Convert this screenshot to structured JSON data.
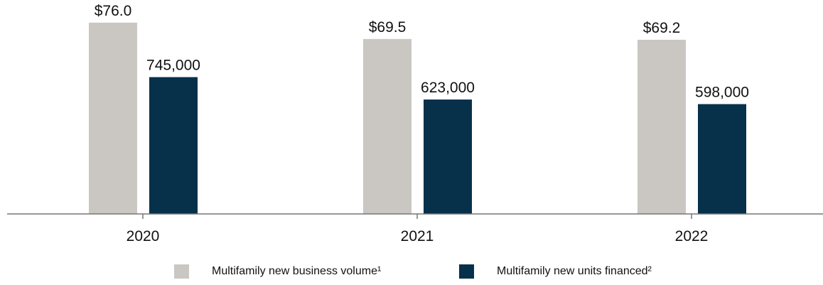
{
  "chart_data": {
    "type": "bar",
    "categories": [
      "2020",
      "2021",
      "2022"
    ],
    "series": [
      {
        "name": "Multifamily new business volume¹",
        "values": [
          76.0,
          69.5,
          69.2
        ],
        "labels": [
          "$76.0",
          "$69.5",
          "$69.2"
        ],
        "color": "#cac7c2"
      },
      {
        "name": "Multifamily new units financed²",
        "values": [
          745000,
          623000,
          598000
        ],
        "labels": [
          "745,000",
          "623,000",
          "598,000"
        ],
        "color": "#07304b"
      }
    ],
    "ylim_by_series": [
      [
        0,
        85
      ],
      [
        0,
        1165000
      ]
    ],
    "grid": false,
    "legend": "bottom",
    "axis_color": "#777777"
  }
}
